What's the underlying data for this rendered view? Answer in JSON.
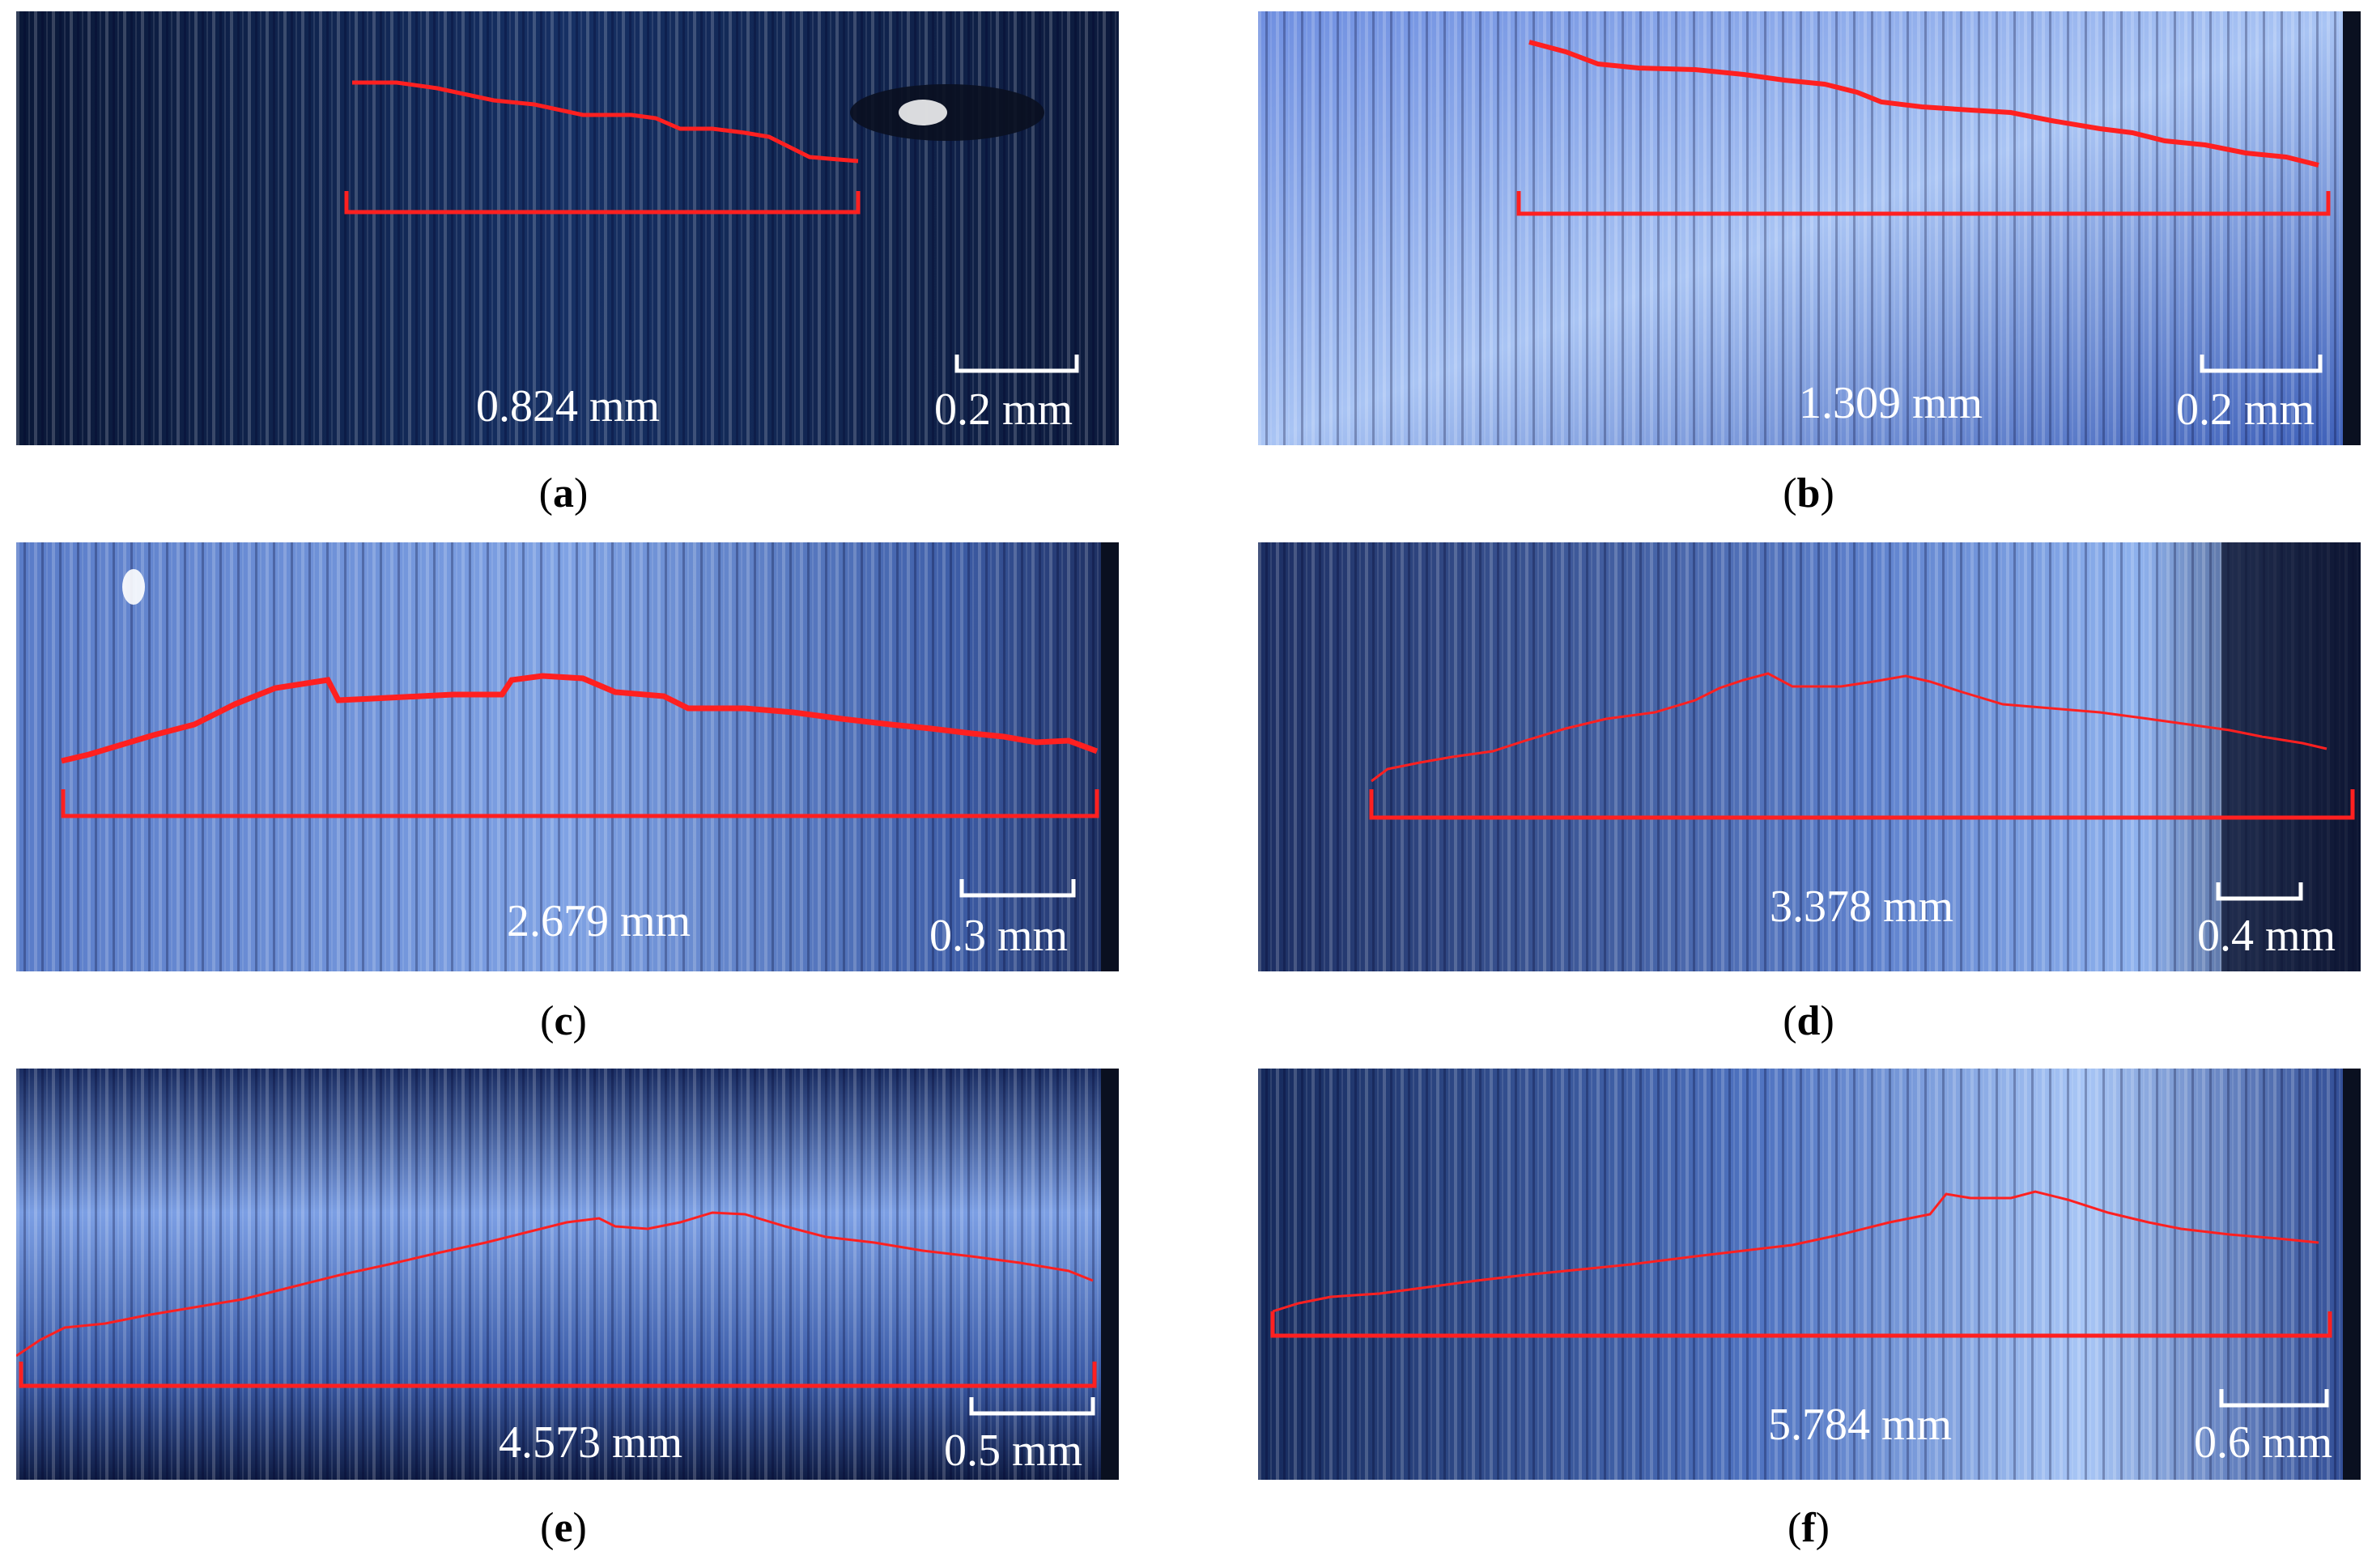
{
  "figure": {
    "panels": [
      {
        "id": "a",
        "caption_letter": "a",
        "crack_length": "0.824 mm",
        "scale_bar": "0.2 mm"
      },
      {
        "id": "b",
        "caption_letter": "b",
        "crack_length": "1.309 mm",
        "scale_bar": "0.2 mm"
      },
      {
        "id": "c",
        "caption_letter": "c",
        "crack_length": "2.679 mm",
        "scale_bar": "0.3 mm"
      },
      {
        "id": "d",
        "caption_letter": "d",
        "crack_length": "3.378 mm",
        "scale_bar": "0.4 mm"
      },
      {
        "id": "e",
        "caption_letter": "e",
        "crack_length": "4.573 mm",
        "scale_bar": "0.5 mm"
      },
      {
        "id": "f",
        "caption_letter": "f",
        "crack_length": "5.784 mm",
        "scale_bar": "0.6 mm"
      }
    ],
    "colors": {
      "crack_trace": "#ff2020",
      "scale_bar": "#ffffff",
      "surface_dark": "#0d1a3a",
      "surface_light": "#7fa6e6"
    }
  }
}
